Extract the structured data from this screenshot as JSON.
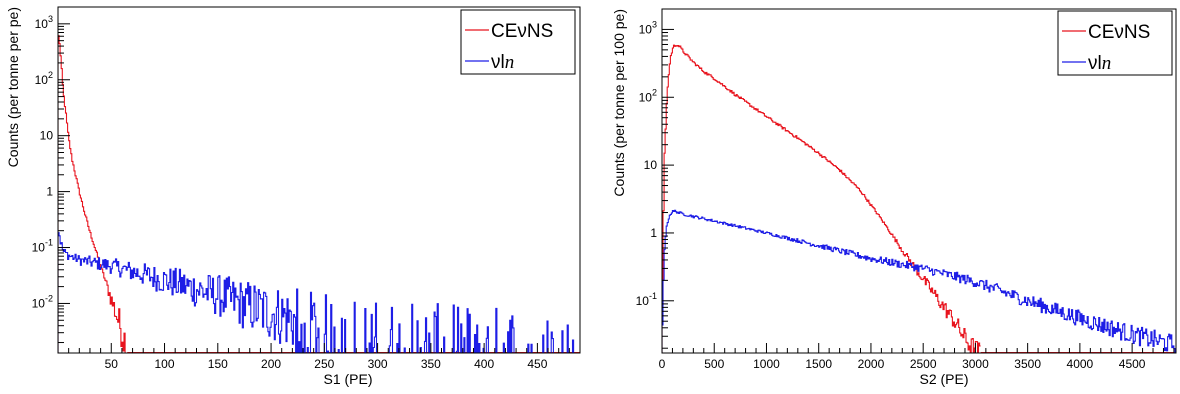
{
  "chart_data": [
    {
      "type": "line",
      "title": "",
      "xlabel": "S1 (PE)",
      "ylabel": "Counts (per tonne per pe)",
      "xlim": [
        0,
        490
      ],
      "ylim": [
        0.0013,
        2000
      ],
      "yscale": "log",
      "grid": false,
      "legend_position": "top-right",
      "x_ticks": [
        50,
        100,
        150,
        200,
        250,
        300,
        350,
        400,
        450
      ],
      "y_ticks": [
        {
          "value": 0.01,
          "base": "10",
          "exp": "-2"
        },
        {
          "value": 0.1,
          "base": "10",
          "exp": "-1"
        },
        {
          "value": 1,
          "base": "1",
          "exp": ""
        },
        {
          "value": 10,
          "base": "10",
          "exp": ""
        },
        {
          "value": 100,
          "base": "10",
          "exp": "2"
        },
        {
          "value": 1000,
          "base": "10",
          "exp": "3"
        }
      ],
      "series": [
        {
          "name": "CEνNS",
          "color": "#e8141e",
          "x": [
            1,
            3,
            5,
            8,
            10,
            13,
            16,
            20,
            25,
            30,
            35,
            40,
            45,
            50,
            55,
            58,
            60,
            62,
            64,
            65
          ],
          "y": [
            600,
            200,
            60,
            20,
            9,
            4,
            2.2,
            1.0,
            0.42,
            0.19,
            0.095,
            0.048,
            0.024,
            0.012,
            0.0062,
            0.0042,
            0.0032,
            0.0024,
            0.0017,
            0.0013
          ]
        },
        {
          "name": "νl",
          "name_italic": "n",
          "color": "#1e1ee6",
          "x": [
            1,
            2,
            5,
            10,
            20,
            30,
            50,
            75,
            100,
            125,
            150,
            175,
            200,
            225,
            250,
            275,
            300,
            350,
            400,
            450,
            490
          ],
          "y": [
            0.2,
            0.14,
            0.085,
            0.072,
            0.06,
            0.055,
            0.047,
            0.035,
            0.026,
            0.019,
            0.014,
            0.0095,
            0.0068,
            0.0048,
            0.0034,
            0.0026,
            0.002,
            0.0016,
            0.0014,
            0.0013,
            0.0013
          ]
        }
      ]
    },
    {
      "type": "line",
      "title": "",
      "xlabel": "S2 (PE)",
      "ylabel": "Counts (per tonne per 100 pe)",
      "xlim": [
        0,
        4920
      ],
      "ylim": [
        0.017,
        2000
      ],
      "yscale": "log",
      "grid": false,
      "legend_position": "top-right",
      "x_ticks": [
        0,
        500,
        1000,
        1500,
        2000,
        2500,
        3000,
        3500,
        4000,
        4500
      ],
      "y_ticks": [
        {
          "value": 0.1,
          "base": "10",
          "exp": "-1"
        },
        {
          "value": 1,
          "base": "1",
          "exp": ""
        },
        {
          "value": 10,
          "base": "10",
          "exp": ""
        },
        {
          "value": 100,
          "base": "10",
          "exp": "2"
        },
        {
          "value": 1000,
          "base": "10",
          "exp": "3"
        }
      ],
      "series": [
        {
          "name": "CEνNS",
          "color": "#e8141e",
          "x": [
            0,
            20,
            50,
            80,
            110,
            140,
            170,
            200,
            300,
            400,
            500,
            700,
            1000,
            1300,
            1500,
            1700,
            1900,
            2100,
            2200,
            2300,
            2400,
            2500,
            2600,
            2700,
            2800,
            2900,
            2950,
            3000,
            3050
          ],
          "y": [
            0.017,
            10,
            120,
            380,
            560,
            600,
            560,
            480,
            330,
            240,
            190,
            110,
            52,
            25,
            15,
            8.5,
            4.2,
            1.6,
            0.95,
            0.56,
            0.34,
            0.21,
            0.13,
            0.08,
            0.05,
            0.028,
            0.022,
            0.019,
            0.017
          ]
        },
        {
          "name": "νl",
          "name_italic": "n",
          "color": "#1e1ee6",
          "x": [
            0,
            20,
            40,
            60,
            80,
            100,
            130,
            160,
            200,
            500,
            1000,
            1500,
            2000,
            2500,
            3000,
            3500,
            4000,
            4500,
            4920
          ],
          "y": [
            0.017,
            0.5,
            1.1,
            1.6,
            1.9,
            2.05,
            2.1,
            2.0,
            1.9,
            1.5,
            1.0,
            0.65,
            0.42,
            0.3,
            0.19,
            0.1,
            0.055,
            0.032,
            0.022
          ]
        }
      ]
    }
  ]
}
